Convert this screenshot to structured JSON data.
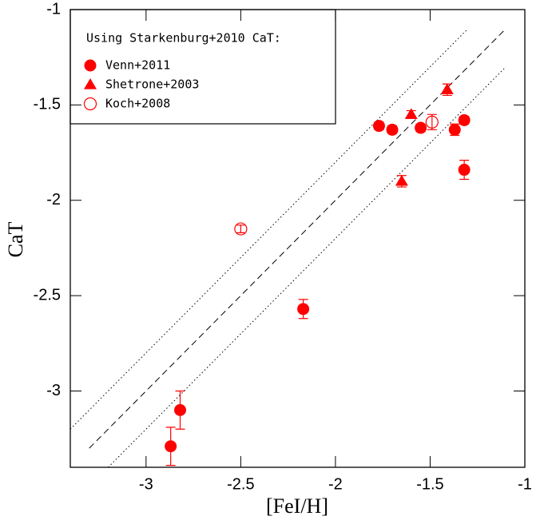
{
  "chart_data": {
    "type": "scatter",
    "xlabel": "[FeI/H]",
    "ylabel": "CaT",
    "legend_title": "Using Starkenburg+2010 CaT:",
    "legend": "upper left",
    "xlim": [
      -3.4,
      -1
    ],
    "ylim": [
      -3.4,
      -1
    ],
    "xticks": [
      -3,
      -2.5,
      -2,
      -1.5,
      -1
    ],
    "yticks": [
      -3,
      -2.5,
      -2,
      -1.5,
      -1
    ],
    "series": [
      {
        "name": "Venn+2011",
        "color": "#ff0000",
        "marker": "filled-circle",
        "x": [
          -2.87,
          -2.82,
          -2.17,
          -1.77,
          -1.7,
          -1.55,
          -1.37,
          -1.32,
          -1.32
        ],
        "values": [
          -3.29,
          -3.1,
          -2.57,
          -1.61,
          -1.63,
          -1.62,
          -1.63,
          -1.58,
          -1.84
        ],
        "errors": [
          0.1,
          0.1,
          0.05,
          0.02,
          0.02,
          0.02,
          0.03,
          0.02,
          0.05
        ]
      },
      {
        "name": "Shetrone+2003",
        "color": "#ff0000",
        "marker": "filled-triangle",
        "x": [
          -1.6,
          -1.65,
          -1.41
        ],
        "values": [
          -1.55,
          -1.9,
          -1.42
        ],
        "errors": [
          0.02,
          0.03,
          0.03
        ]
      },
      {
        "name": "Koch+2008",
        "color": "#ff0000",
        "marker": "open-circle",
        "x": [
          -2.5,
          -1.49
        ],
        "values": [
          -2.15,
          -1.59
        ],
        "errors": [
          0.02,
          0.04
        ]
      }
    ],
    "lines": [
      {
        "style": "dashed",
        "x": [
          -3.3,
          -1.1
        ],
        "values": [
          -3.3,
          -1.1
        ]
      },
      {
        "style": "dotted",
        "x": [
          -3.4,
          -1.3
        ],
        "values": [
          -3.2,
          -1.1
        ]
      },
      {
        "style": "dotted",
        "x": [
          -3.2,
          -1.1
        ],
        "values": [
          -3.4,
          -1.3
        ]
      }
    ]
  }
}
